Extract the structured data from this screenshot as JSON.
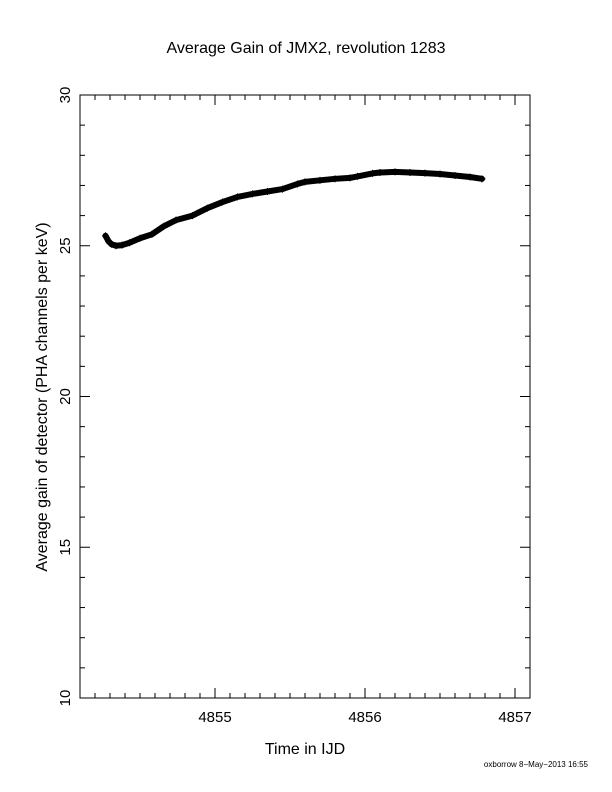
{
  "chart_data": {
    "type": "scatter",
    "title": "Average Gain of JMX2, revolution 1283",
    "xlabel": "Time in IJD",
    "ylabel": "Average gain of detector (PHA channels per keV)",
    "xlim": [
      4854.1,
      4857.1
    ],
    "ylim": [
      10,
      30
    ],
    "xticks": [
      4855,
      4856,
      4857
    ],
    "yticks": [
      10,
      15,
      20,
      25,
      30
    ],
    "grid": false,
    "marker": "plus",
    "series": [
      {
        "x": [
          4854.27,
          4854.29,
          4854.31,
          4854.34,
          4854.38,
          4854.43,
          4854.5,
          4854.58,
          4854.66,
          4854.74,
          4854.85,
          4854.95,
          4855.05,
          4855.15,
          4855.25,
          4855.35,
          4855.45,
          4855.55,
          4855.6,
          4855.7,
          4855.8,
          4855.9,
          4855.95,
          4856.05,
          4856.1,
          4856.2,
          4856.3,
          4856.4,
          4856.5,
          4856.6,
          4856.7,
          4856.78
        ],
        "y": [
          25.33,
          25.15,
          25.05,
          25.0,
          25.02,
          25.1,
          25.25,
          25.38,
          25.65,
          25.85,
          26.0,
          26.25,
          26.45,
          26.62,
          26.72,
          26.8,
          26.88,
          27.05,
          27.12,
          27.17,
          27.22,
          27.25,
          27.3,
          27.4,
          27.43,
          27.45,
          27.43,
          27.41,
          27.38,
          27.33,
          27.28,
          27.22
        ]
      }
    ]
  },
  "footer": "oxborrow  8−May−2013 16:55"
}
